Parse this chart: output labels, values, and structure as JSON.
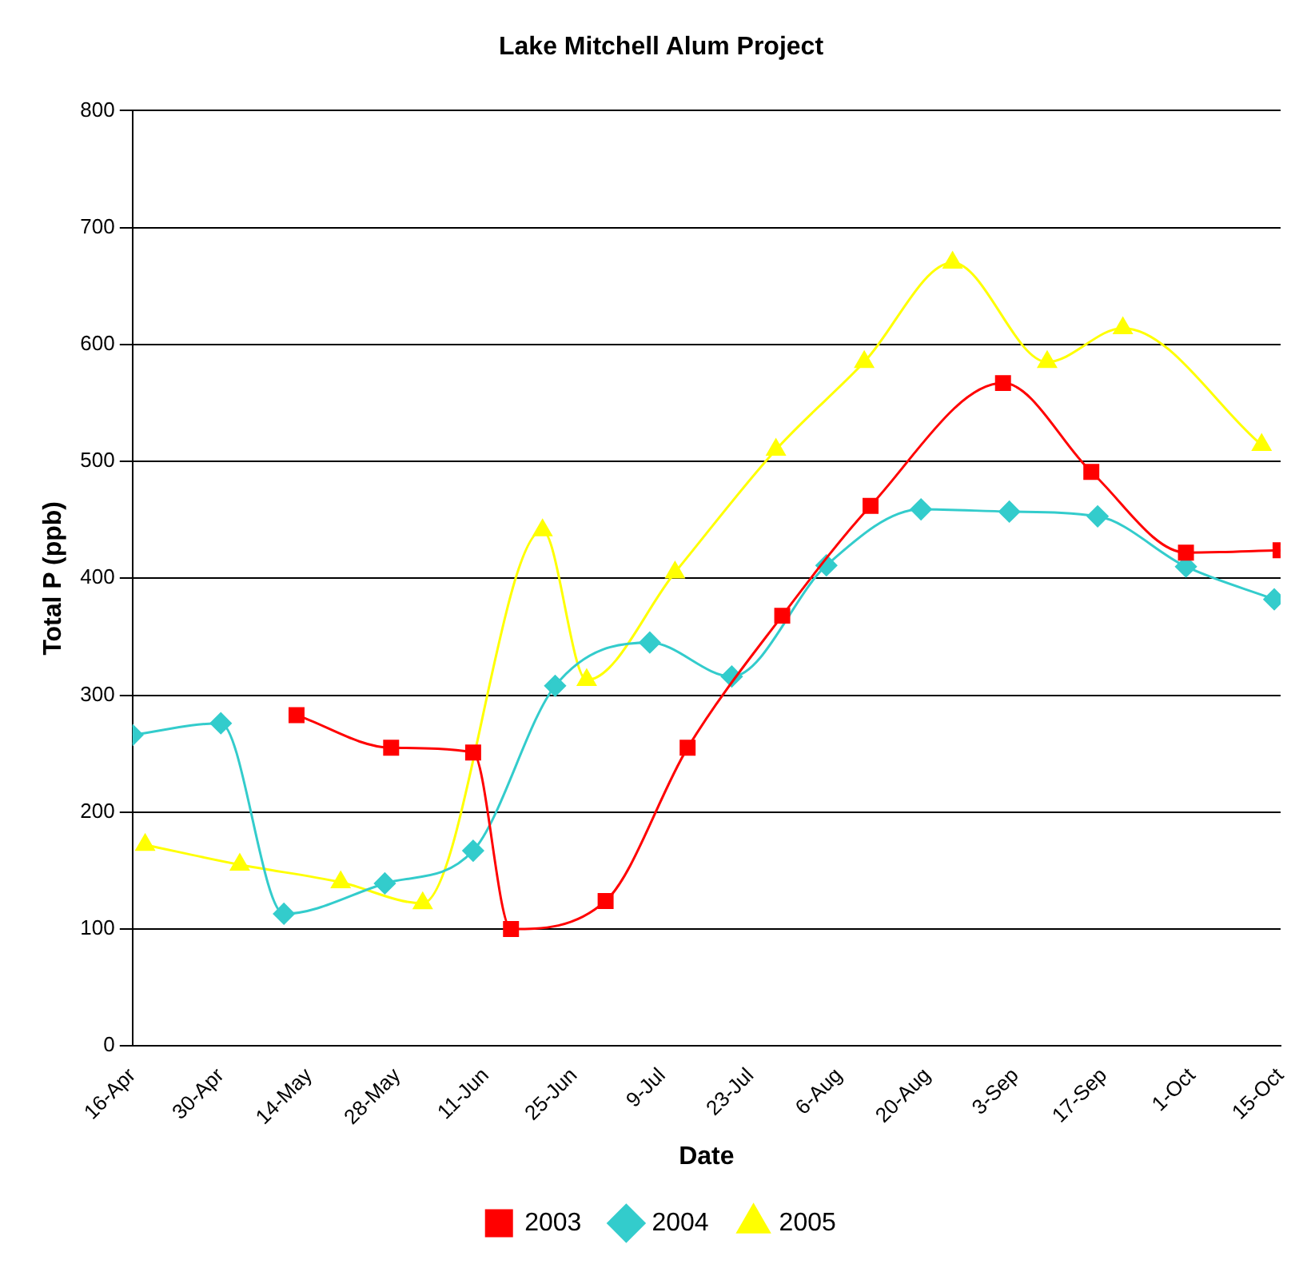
{
  "chart_data": {
    "type": "line",
    "title": "Lake Mitchell Alum Project",
    "xlabel": "Date",
    "ylabel": "Total P (ppb)",
    "xlim": [
      "--04-16",
      "--10-15"
    ],
    "xticks": [
      {
        "value": "--04-16",
        "label": "16-Apr"
      },
      {
        "value": "--04-30",
        "label": "30-Apr"
      },
      {
        "value": "--05-14",
        "label": "14-May"
      },
      {
        "value": "--05-28",
        "label": "28-May"
      },
      {
        "value": "--06-11",
        "label": "11-Jun"
      },
      {
        "value": "--06-25",
        "label": "25-Jun"
      },
      {
        "value": "--07-09",
        "label": "9-Jul"
      },
      {
        "value": "--07-23",
        "label": "23-Jul"
      },
      {
        "value": "--08-06",
        "label": "6-Aug"
      },
      {
        "value": "--08-20",
        "label": "20-Aug"
      },
      {
        "value": "--09-03",
        "label": "3-Sep"
      },
      {
        "value": "--09-17",
        "label": "17-Sep"
      },
      {
        "value": "--10-01",
        "label": "1-Oct"
      },
      {
        "value": "--10-15",
        "label": "15-Oct"
      }
    ],
    "ylim": [
      0,
      800
    ],
    "yticks": [
      0,
      100,
      200,
      300,
      400,
      500,
      600,
      700,
      800
    ],
    "grid": "y",
    "legend": "bottom",
    "series": [
      {
        "name": "2003",
        "color": "#ff0000",
        "marker": "square",
        "x": [
          "--05-12",
          "--05-27",
          "--06-09",
          "--06-15",
          "--06-30",
          "--07-13",
          "--07-28",
          "--08-11",
          "--09-01",
          "--09-15",
          "--09-30",
          "--10-15"
        ],
        "values": [
          283,
          255,
          251,
          100,
          124,
          255,
          368,
          462,
          567,
          491,
          422,
          424
        ]
      },
      {
        "name": "2004",
        "color": "#33cccc",
        "marker": "diamond",
        "x": [
          "--04-16",
          "--04-30",
          "--05-10",
          "--05-26",
          "--06-09",
          "--06-22",
          "--07-07",
          "--07-20",
          "--08-04",
          "--08-19",
          "--09-02",
          "--09-16",
          "--09-30",
          "--10-14"
        ],
        "values": [
          266,
          276,
          113,
          139,
          167,
          308,
          345,
          316,
          411,
          459,
          457,
          453,
          410,
          382
        ]
      },
      {
        "name": "2005",
        "color": "#ffff00",
        "marker": "triangle",
        "x": [
          "--04-18",
          "--05-03",
          "--05-19",
          "--06-01",
          "--06-20",
          "--06-27",
          "--07-11",
          "--07-27",
          "--08-10",
          "--08-24",
          "--09-08",
          "--09-20",
          "--10-12"
        ],
        "values": [
          172,
          155,
          140,
          122,
          441,
          313,
          405,
          510,
          585,
          670,
          585,
          614,
          514
        ]
      }
    ]
  }
}
